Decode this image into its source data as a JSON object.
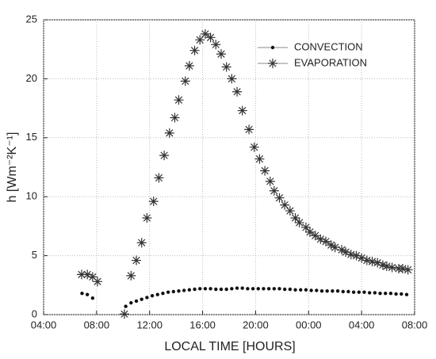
{
  "chart_data": {
    "type": "scatter",
    "xlabel": "LOCAL TIME [HOURS]",
    "ylabel": "h [Wm⁻²K⁻¹]",
    "xlim": [
      4,
      32
    ],
    "xticks": [
      {
        "value": 4,
        "label": "04:00"
      },
      {
        "value": 8,
        "label": "08:00"
      },
      {
        "value": 12,
        "label": "12:00"
      },
      {
        "value": 16,
        "label": "16:00"
      },
      {
        "value": 20,
        "label": "20:00"
      },
      {
        "value": 24,
        "label": "00:00"
      },
      {
        "value": 28,
        "label": "04:00"
      },
      {
        "value": 32,
        "label": "08:00"
      }
    ],
    "ylim": [
      0,
      25
    ],
    "yticks": [
      0,
      5,
      10,
      15,
      20,
      25
    ],
    "grid": true,
    "legend": "upper right",
    "series": [
      {
        "name": "CONVECTION",
        "color": "#111111",
        "marker": "dot",
        "x": [
          6.9,
          7.3,
          7.7,
          10.2,
          10.6,
          11.0,
          11.4,
          11.8,
          12.2,
          12.6,
          13.0,
          13.4,
          13.8,
          14.2,
          14.6,
          15.0,
          15.4,
          15.8,
          16.2,
          16.6,
          17.0,
          17.4,
          17.8,
          18.2,
          18.6,
          19.0,
          19.4,
          19.8,
          20.2,
          20.6,
          21.0,
          21.4,
          21.8,
          22.2,
          22.6,
          23.0,
          23.4,
          23.8,
          24.2,
          24.6,
          25.0,
          25.4,
          25.8,
          26.2,
          26.6,
          27.0,
          27.4,
          27.8,
          28.2,
          28.6,
          29.0,
          29.4,
          29.8,
          30.2,
          30.6,
          31.0,
          31.4
        ],
        "values": [
          1.8,
          1.7,
          1.4,
          0.7,
          1.0,
          1.15,
          1.3,
          1.45,
          1.6,
          1.7,
          1.8,
          1.9,
          1.95,
          2.0,
          2.05,
          2.1,
          2.15,
          2.2,
          2.2,
          2.2,
          2.15,
          2.15,
          2.15,
          2.2,
          2.25,
          2.25,
          2.2,
          2.2,
          2.2,
          2.2,
          2.2,
          2.2,
          2.2,
          2.15,
          2.15,
          2.1,
          2.1,
          2.1,
          2.05,
          2.05,
          2.0,
          2.0,
          2.0,
          2.0,
          1.95,
          1.95,
          1.9,
          1.9,
          1.9,
          1.85,
          1.85,
          1.8,
          1.8,
          1.8,
          1.75,
          1.75,
          1.7
        ]
      },
      {
        "name": "EVAPORATION",
        "color": "#333333",
        "marker": "asterisk",
        "x": [
          6.87,
          7.3,
          7.7,
          8.07,
          10.1,
          10.6,
          11.0,
          11.4,
          11.8,
          12.3,
          12.7,
          13.1,
          13.5,
          13.9,
          14.2,
          14.7,
          15.0,
          15.4,
          15.8,
          16.2,
          16.6,
          17.0,
          17.4,
          17.8,
          18.2,
          18.6,
          19.0,
          19.5,
          19.9,
          20.3,
          20.7,
          21.1,
          21.4,
          21.8,
          22.2,
          22.6,
          23.0,
          23.3,
          23.8,
          24.1,
          24.5,
          24.9,
          25.3,
          25.7,
          26.0,
          26.5,
          26.8,
          27.2,
          27.6,
          28.0,
          28.4,
          28.8,
          29.2,
          29.6,
          29.9,
          30.3,
          30.8,
          31.1,
          31.5
        ],
        "values": [
          3.4,
          3.4,
          3.2,
          2.8,
          0.05,
          3.3,
          4.6,
          6.1,
          8.2,
          9.6,
          11.6,
          13.5,
          15.4,
          16.7,
          18.2,
          19.8,
          21.1,
          22.4,
          23.3,
          23.8,
          23.5,
          22.9,
          22.1,
          21.0,
          20.0,
          18.9,
          17.3,
          15.7,
          14.2,
          13.2,
          12.2,
          11.3,
          10.5,
          9.9,
          9.3,
          8.8,
          8.2,
          7.8,
          7.4,
          7.0,
          6.7,
          6.4,
          6.2,
          5.9,
          5.7,
          5.5,
          5.3,
          5.1,
          5.0,
          4.8,
          4.6,
          4.5,
          4.4,
          4.2,
          4.1,
          4.0,
          3.9,
          3.9,
          3.8
        ]
      }
    ]
  }
}
